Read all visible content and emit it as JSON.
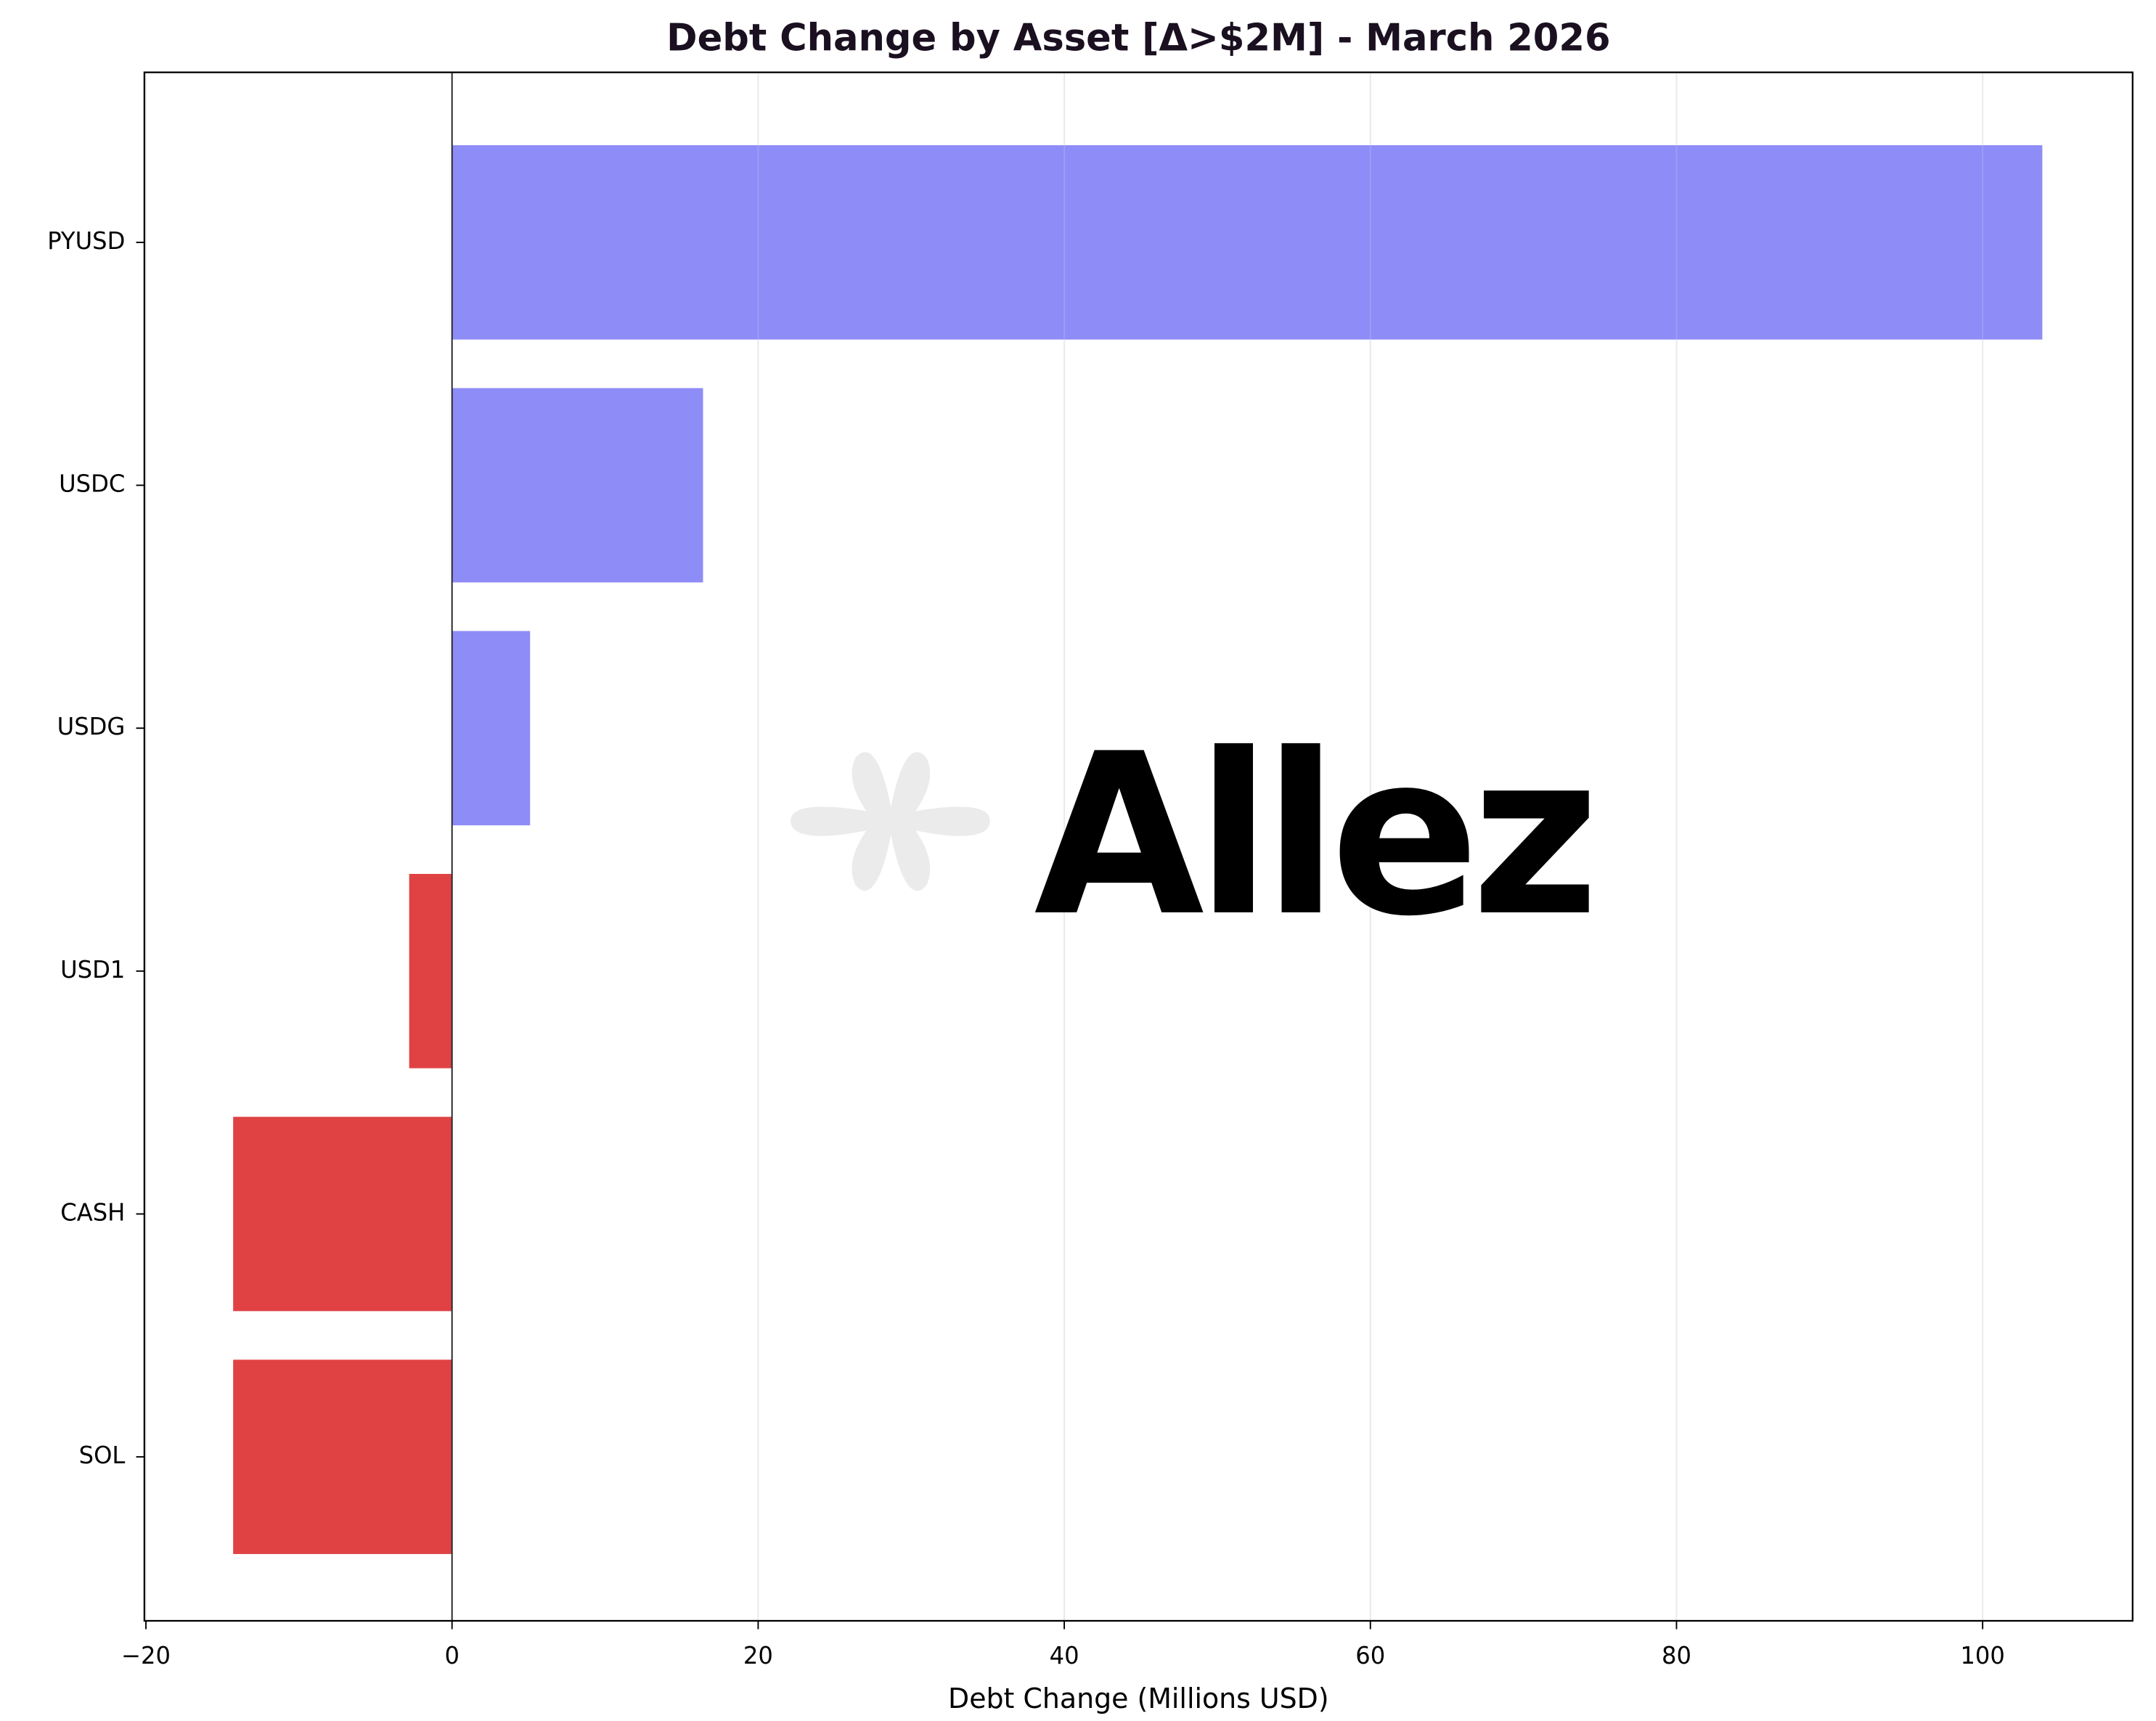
{
  "chart_data": {
    "type": "barh",
    "title": "Debt Change by Asset [Δ>$2M] - March 2026",
    "xlabel": "Debt Change (Millions USD)",
    "watermark": "Allez",
    "categories": [
      "PYUSD",
      "USDC",
      "USDG",
      "USD1",
      "CASH",
      "SOL"
    ],
    "values": [
      103.9,
      16.4,
      5.1,
      -2.8,
      -14.3,
      -14.3
    ],
    "colors": [
      "#8e8cf6",
      "#8e8cf6",
      "#8e8cf6",
      "#e04244",
      "#e04244",
      "#e04244"
    ],
    "xlim": [
      -20.1,
      109.8
    ],
    "xticks": [
      {
        "value": -20,
        "label": "−20"
      },
      0,
      20,
      40,
      60,
      80,
      100
    ],
    "grid": true
  }
}
